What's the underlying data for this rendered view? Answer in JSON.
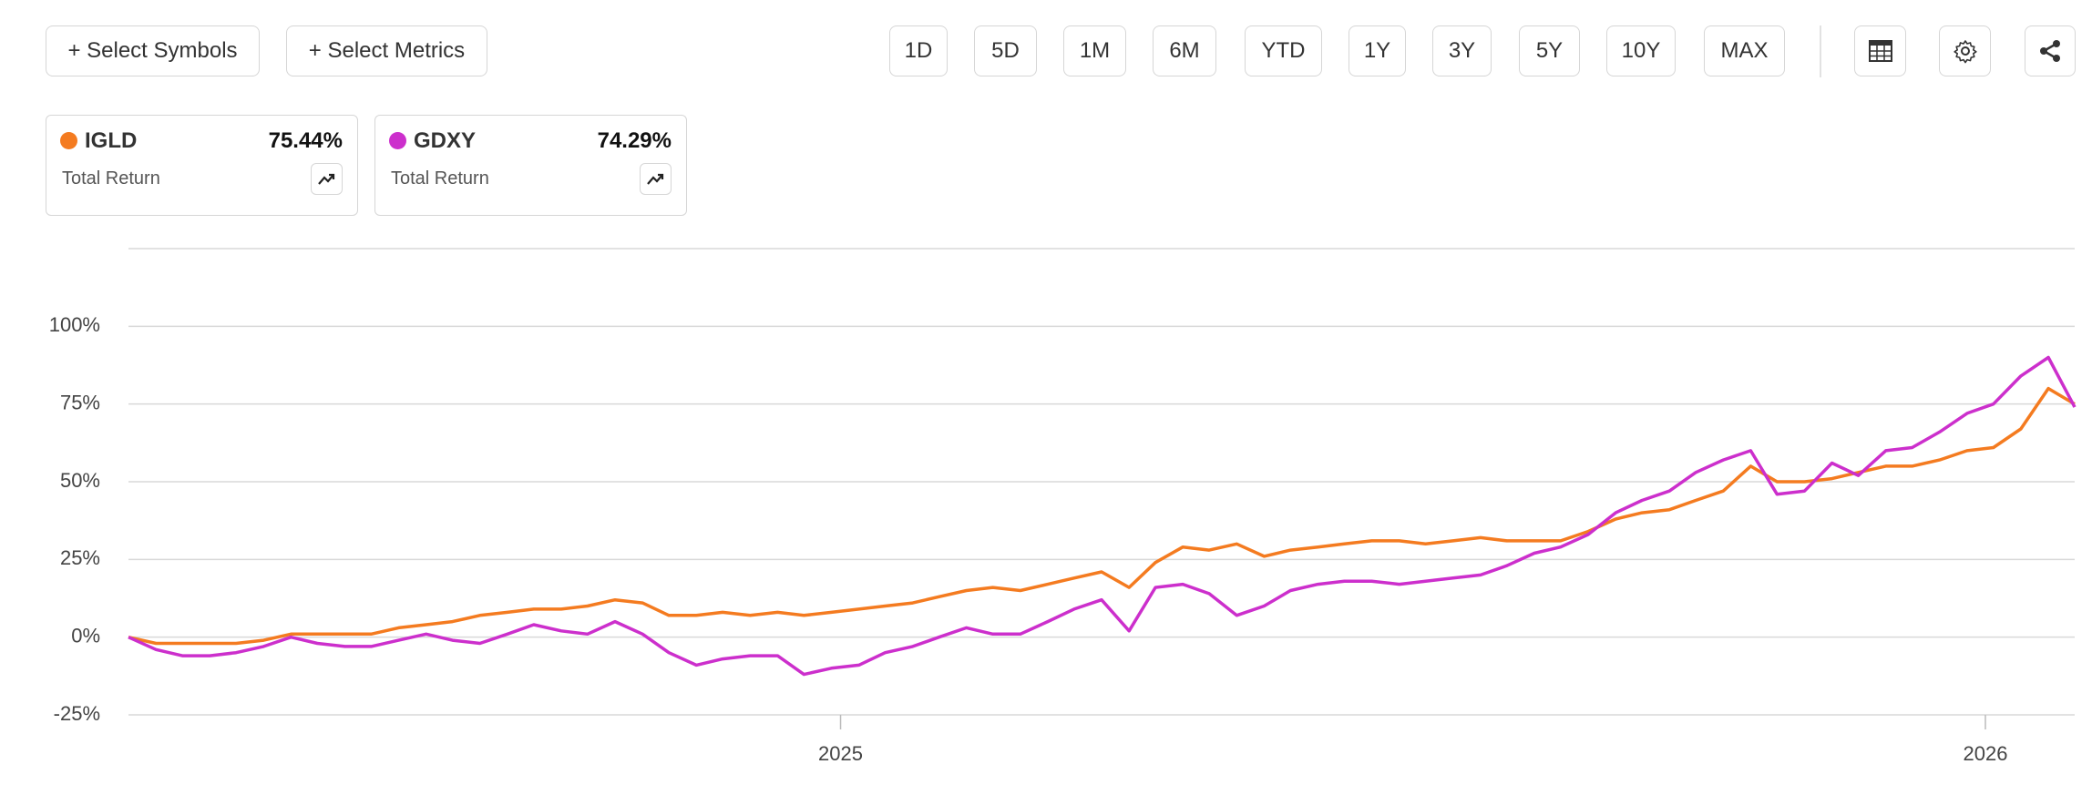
{
  "toolbar": {
    "symbols_button": "+ Select Symbols",
    "metrics_button": "+ Select Metrics",
    "ranges": [
      "1D",
      "5D",
      "1M",
      "6M",
      "YTD",
      "1Y",
      "3Y",
      "5Y",
      "10Y",
      "MAX"
    ]
  },
  "cards": [
    {
      "symbol": "IGLD",
      "return": "75.44%",
      "label": "Total Return"
    },
    {
      "symbol": "GDXY",
      "return": "74.29%",
      "label": "Total Return"
    }
  ],
  "chart_data": {
    "type": "line",
    "x": [
      2024.378,
      2024.402,
      2024.425,
      2024.449,
      2024.472,
      2024.496,
      2024.52,
      2024.543,
      2024.567,
      2024.59,
      2024.614,
      2024.638,
      2024.661,
      2024.685,
      2024.709,
      2024.732,
      2024.756,
      2024.779,
      2024.803,
      2024.827,
      2024.85,
      2024.874,
      2024.897,
      2024.921,
      2024.945,
      2024.968,
      2024.992,
      2025.016,
      2025.039,
      2025.063,
      2025.086,
      2025.11,
      2025.133,
      2025.157,
      2025.181,
      2025.204,
      2025.228,
      2025.252,
      2025.275,
      2025.299,
      2025.322,
      2025.346,
      2025.37,
      2025.393,
      2025.417,
      2025.44,
      2025.464,
      2025.488,
      2025.511,
      2025.535,
      2025.559,
      2025.582,
      2025.606,
      2025.629,
      2025.653,
      2025.677,
      2025.7,
      2025.724,
      2025.747,
      2025.771,
      2025.795,
      2025.818,
      2025.842,
      2025.866,
      2025.889,
      2025.913,
      2025.936,
      2025.96,
      2025.984,
      2026.007,
      2026.031,
      2026.055,
      2026.078
    ],
    "series": [
      {
        "name": "IGLD",
        "color": "#f47b20",
        "values": [
          0,
          -2,
          -2,
          -2,
          -2,
          -1,
          1,
          1,
          1,
          1,
          3,
          4,
          5,
          7,
          8,
          9,
          9,
          10,
          12,
          11,
          7,
          7,
          8,
          7,
          8,
          7,
          8,
          9,
          10,
          11,
          13,
          15,
          16,
          15,
          17,
          19,
          21,
          16,
          24,
          29,
          28,
          30,
          26,
          28,
          29,
          30,
          31,
          31,
          30,
          31,
          32,
          31,
          31,
          31,
          34,
          38,
          40,
          41,
          44,
          47,
          55,
          50,
          50,
          51,
          53,
          55,
          55,
          57,
          60,
          61,
          67,
          80,
          75
        ]
      },
      {
        "name": "GDXY",
        "color": "#cc2fcc",
        "values": [
          0,
          -4,
          -6,
          -6,
          -5,
          -3,
          0,
          -2,
          -3,
          -3,
          -1,
          1,
          -1,
          -2,
          1,
          4,
          2,
          1,
          5,
          1,
          -5,
          -9,
          -7,
          -6,
          -6,
          -12,
          -10,
          -9,
          -5,
          -3,
          0,
          3,
          1,
          1,
          5,
          9,
          12,
          2,
          16,
          17,
          14,
          7,
          10,
          15,
          17,
          18,
          18,
          17,
          18,
          19,
          20,
          23,
          27,
          29,
          33,
          40,
          44,
          47,
          53,
          57,
          60,
          46,
          47,
          56,
          52,
          60,
          61,
          66,
          72,
          75,
          84,
          90,
          74
        ]
      }
    ],
    "xlim": [
      2024.378,
      2026.078
    ],
    "xticks": [
      2025,
      2026
    ],
    "ylim": [
      -25,
      125
    ],
    "yticks": [
      {
        "value": -25,
        "label": "-25%"
      },
      {
        "value": 0,
        "label": "0%"
      },
      {
        "value": 25,
        "label": "25%"
      },
      {
        "value": 50,
        "label": "50%"
      },
      {
        "value": 75,
        "label": "75%"
      },
      {
        "value": 100,
        "label": "100%"
      }
    ],
    "grid": true
  }
}
